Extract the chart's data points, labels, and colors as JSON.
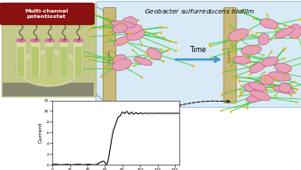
{
  "title": "Geobacter sulfurreducens biofilm",
  "xlabel": "Time",
  "ylabel": "Current",
  "yticks": [
    0,
    2,
    4,
    6,
    8,
    10,
    12
  ],
  "xticks": [
    0,
    20,
    40,
    60,
    80,
    100,
    120,
    140
  ],
  "bg_panel_color": "#d8eaf5",
  "bg_panel_edge": "#b0c8d8",
  "electrode_color": "#c8b87a",
  "electrode_edge": "#9a8a50",
  "bacteria_face": "#e8a0b8",
  "bacteria_edge": "#c06080",
  "pili_color": "#33cc33",
  "pili_dot_color": "#ffaa00",
  "arrow_color": "#4499cc",
  "curve_color": "#111111",
  "label_box_color": "#8b1010",
  "label_text": "Multi-channel\npotentiostat",
  "photo_bg": "#c8c8a0",
  "photo_outer": "#d0c890",
  "vial_color": "#d8e0a0",
  "vial_liquid": "#b8c870",
  "cap_color": "#e070a0",
  "wire_color": "#222222"
}
